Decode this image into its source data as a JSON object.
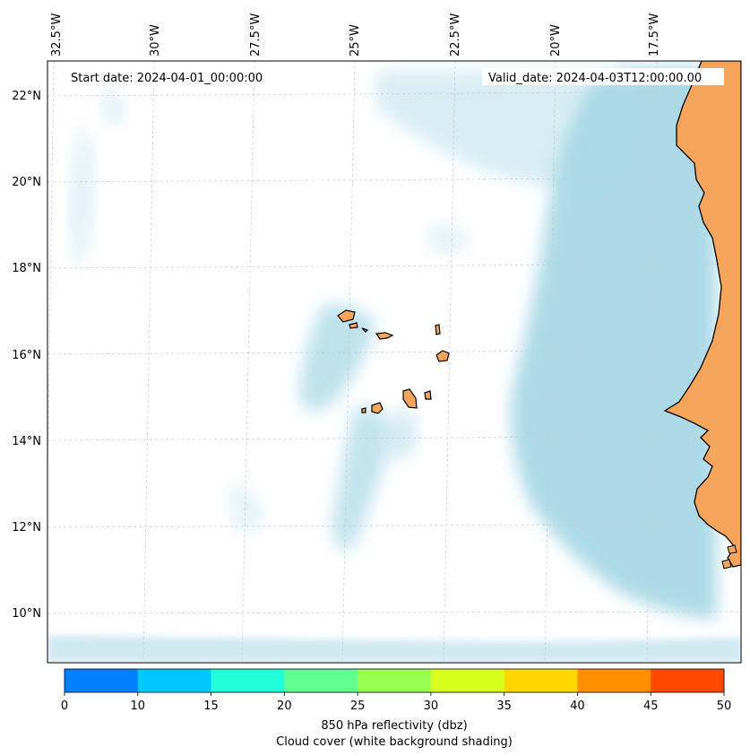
{
  "map": {
    "start_date": "Start date: 2024-04-01_00:00:00",
    "valid_date": "Valid_date: 2024-04-03T12:00:00.00",
    "lon_labels": [
      "32.5°W",
      "30°W",
      "27.5°W",
      "25°W",
      "22.5°W",
      "20°W",
      "17.5°W"
    ],
    "lat_labels": [
      "22°N",
      "20°N",
      "18°N",
      "16°N",
      "14°N",
      "12°N",
      "10°N"
    ],
    "land_color": "#f5a55c",
    "cloud_color": "#a9d8e6"
  },
  "colorbar": {
    "ticks": [
      "0",
      "10",
      "15",
      "20",
      "25",
      "30",
      "35",
      "40",
      "45",
      "50"
    ],
    "colors": [
      "#0080ff",
      "#00c8ff",
      "#20ffd8",
      "#60ff90",
      "#98ff50",
      "#d8ff20",
      "#ffd800",
      "#ff9000",
      "#ff4800"
    ],
    "label_line1": "850 hPa reflectivity (dbz)",
    "label_line2": "Cloud cover (white background shading)"
  }
}
